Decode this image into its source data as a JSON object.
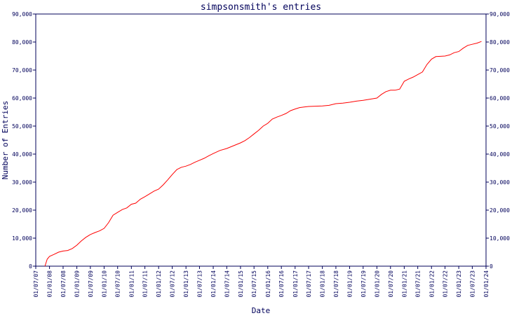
{
  "chart_data": {
    "type": "line",
    "title": "simpsonsmith's entries",
    "xlabel": "Date",
    "ylabel": "Number of Entries",
    "ylim": [
      0,
      90000
    ],
    "xlim": [
      "2007-07-01",
      "2024-01-01"
    ],
    "y_ticks": [
      0,
      10000,
      20000,
      30000,
      40000,
      50000,
      60000,
      70000,
      80000,
      90000
    ],
    "y_tick_labels": [
      "0",
      "10,000",
      "20,000",
      "30,000",
      "40,000",
      "50,000",
      "60,000",
      "70,000",
      "80,000",
      "90,000"
    ],
    "x_ticks": [
      "2007-07-01",
      "2008-01-01",
      "2008-07-01",
      "2009-01-01",
      "2009-07-01",
      "2010-01-01",
      "2010-07-01",
      "2011-01-01",
      "2011-07-01",
      "2012-01-01",
      "2012-07-01",
      "2013-01-01",
      "2013-07-01",
      "2014-01-01",
      "2014-07-01",
      "2015-01-01",
      "2015-07-01",
      "2016-01-01",
      "2016-07-01",
      "2017-01-01",
      "2017-07-01",
      "2018-01-01",
      "2018-07-01",
      "2019-01-01",
      "2019-07-01",
      "2020-01-01",
      "2020-07-01",
      "2021-01-01",
      "2021-07-01",
      "2022-01-01",
      "2022-07-01",
      "2023-01-01",
      "2023-07-01",
      "2024-01-01"
    ],
    "x_tick_labels": [
      "01/07/07",
      "01/01/08",
      "01/07/08",
      "01/01/09",
      "01/07/09",
      "01/01/10",
      "01/07/10",
      "01/01/11",
      "01/07/11",
      "01/01/12",
      "01/07/12",
      "01/01/13",
      "01/07/13",
      "01/01/14",
      "01/07/14",
      "01/01/15",
      "01/07/15",
      "01/01/16",
      "01/07/16",
      "01/01/17",
      "01/07/17",
      "01/01/18",
      "01/07/18",
      "01/01/19",
      "01/07/19",
      "01/01/20",
      "01/07/20",
      "01/01/21",
      "01/07/21",
      "01/01/22",
      "01/07/22",
      "01/01/23",
      "01/07/23",
      "01/01/24"
    ],
    "grid": false,
    "colors": {
      "axis": "#00005a",
      "line": "#ff0000",
      "background": "#ffffff"
    },
    "series": [
      {
        "x": [
          "2007-11-01",
          "2007-12-01",
          "2008-01-01",
          "2008-03-01",
          "2008-05-01",
          "2008-07-01",
          "2008-09-01",
          "2008-11-01",
          "2009-01-01",
          "2009-03-01",
          "2009-05-01",
          "2009-07-01",
          "2009-09-01",
          "2009-11-01",
          "2010-01-01",
          "2010-03-01",
          "2010-05-01",
          "2010-07-01",
          "2010-09-01",
          "2010-11-01",
          "2011-01-01",
          "2011-03-01",
          "2011-05-01",
          "2011-07-01",
          "2011-09-01",
          "2011-11-01",
          "2012-01-01",
          "2012-03-01",
          "2012-05-01",
          "2012-07-01",
          "2012-09-01",
          "2012-11-01",
          "2013-01-01",
          "2013-03-01",
          "2013-05-01",
          "2013-07-01",
          "2013-09-01",
          "2013-11-01",
          "2014-01-01",
          "2014-04-01",
          "2014-07-01",
          "2014-10-01",
          "2015-01-01",
          "2015-03-01",
          "2015-05-01",
          "2015-07-01",
          "2015-09-01",
          "2015-11-01",
          "2016-01-01",
          "2016-03-01",
          "2016-05-01",
          "2016-07-01",
          "2016-09-01",
          "2016-11-01",
          "2017-01-01",
          "2017-03-01",
          "2017-05-01",
          "2017-07-01",
          "2017-10-01",
          "2018-01-01",
          "2018-04-01",
          "2018-07-01",
          "2018-10-01",
          "2019-01-01",
          "2019-04-01",
          "2019-07-01",
          "2019-10-01",
          "2020-01-01",
          "2020-03-01",
          "2020-05-01",
          "2020-07-01",
          "2020-09-01",
          "2020-11-01",
          "2021-01-01",
          "2021-03-01",
          "2021-05-01",
          "2021-07-01",
          "2021-09-01",
          "2021-11-01",
          "2022-01-01",
          "2022-03-01",
          "2022-05-01",
          "2022-07-01",
          "2022-09-01",
          "2022-11-01",
          "2023-01-01",
          "2023-03-01",
          "2023-05-01",
          "2023-07-01",
          "2023-09-01",
          "2023-11-01"
        ],
        "values": [
          0,
          2500,
          3500,
          4200,
          5000,
          5400,
          5600,
          6300,
          7500,
          9000,
          10300,
          11300,
          12000,
          12600,
          13500,
          15500,
          18200,
          19200,
          20200,
          20800,
          22100,
          22500,
          23900,
          24800,
          25800,
          26800,
          27500,
          29000,
          30800,
          32700,
          34500,
          35300,
          35700,
          36300,
          37100,
          37800,
          38500,
          39400,
          40200,
          41300,
          42000,
          43000,
          44000,
          44800,
          45900,
          47200,
          48500,
          50000,
          51000,
          52500,
          53200,
          53800,
          54500,
          55500,
          56100,
          56600,
          56800,
          57000,
          57100,
          57200,
          57400,
          58000,
          58200,
          58500,
          58900,
          59200,
          59600,
          60000,
          61300,
          62300,
          62800,
          62800,
          63200,
          66000,
          66800,
          67500,
          68400,
          69300,
          72000,
          73900,
          74800,
          74900,
          75000,
          75400,
          76200,
          76600,
          77800,
          78800,
          79200,
          79600,
          80200
        ]
      }
    ]
  }
}
